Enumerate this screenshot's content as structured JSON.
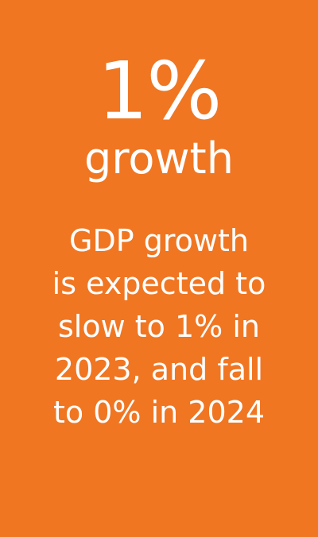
{
  "card": {
    "background_color": "#F07622",
    "text_color": "#FFFFFF",
    "stat_value": "1%",
    "stat_label": "growth",
    "description_lines": [
      "GDP growth",
      "is expected to",
      "slow to 1% in",
      "2023, and fall",
      "to 0% in 2024"
    ]
  }
}
